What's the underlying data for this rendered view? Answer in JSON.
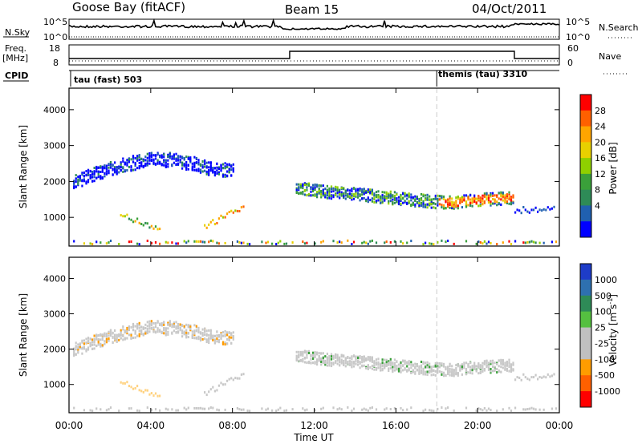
{
  "header": {
    "station": "Goose Bay (fitACF)",
    "beam": "Beam 15",
    "date": "04/Oct/2011"
  },
  "noise_panel": {
    "left_label": "N.Sky",
    "right_label": "N.Search",
    "left_ticks": [
      "10^5",
      "10^0"
    ],
    "right_ticks": [
      "10^5",
      "10^0"
    ]
  },
  "freq_panel": {
    "left_label_1": "Freq.",
    "left_label_2": "[MHz]",
    "right_label": "Nave",
    "left_ticks": [
      "18",
      "8"
    ],
    "right_ticks": [
      "60",
      "0"
    ]
  },
  "cpid": {
    "label": "CPID",
    "modes": [
      {
        "name": "tau (fast) 503",
        "start_hour": 0
      },
      {
        "name": "themis (tau) 3310",
        "start_hour": 18.0
      }
    ]
  },
  "axes": {
    "range_label": "Slant Range [km]",
    "range_ticks": [
      "1000",
      "2000",
      "3000",
      "4000"
    ],
    "time_label": "Time UT",
    "time_ticks": [
      "00:00",
      "04:00",
      "08:00",
      "12:00",
      "16:00",
      "20:00",
      "00:00"
    ]
  },
  "power_colorbar": {
    "label": "Power [dB]",
    "ticks": [
      "28",
      "24",
      "20",
      "16",
      "12",
      "8",
      "4"
    ],
    "colors": [
      "#ff0000",
      "#ff6000",
      "#ffa500",
      "#e8d000",
      "#8fd000",
      "#3aa03a",
      "#2e8b57",
      "#2060b0",
      "#0000ff"
    ]
  },
  "velocity_colorbar": {
    "label_prefix": "Velocity",
    "label_units": "[m s",
    "label_exp": "-1",
    "ticks": [
      "1000",
      "500",
      "100",
      "25",
      "-25",
      "-100",
      "-500",
      "-1000"
    ],
    "colors": [
      "#1e3cc8",
      "#2e70b0",
      "#2e8b57",
      "#55c040",
      "#c0c0c0",
      "#c0c0c0",
      "#ff9c00",
      "#ff6000",
      "#ff0000"
    ]
  },
  "chart_data": {
    "type": "heatmap",
    "x_unit": "hours UT",
    "xlim": [
      0,
      24
    ],
    "ylim": [
      200,
      4600
    ],
    "power_band_center_km": [
      [
        0,
        1950
      ],
      [
        1,
        2150
      ],
      [
        2,
        2350
      ],
      [
        3,
        2500
      ],
      [
        4,
        2600
      ],
      [
        5,
        2600
      ],
      [
        6,
        2500
      ],
      [
        7,
        2350
      ],
      [
        8,
        2300
      ]
    ],
    "power_band_center_km_late": [
      [
        11,
        1850
      ],
      [
        12.5,
        1700
      ],
      [
        14,
        1650
      ],
      [
        15.5,
        1550
      ],
      [
        16.5,
        1500
      ],
      [
        17.5,
        1450
      ],
      [
        18.5,
        1400
      ],
      [
        19.5,
        1450
      ],
      [
        20.5,
        1500
      ],
      [
        21.8,
        1550
      ]
    ],
    "hot_spot_power_dB": 28,
    "velocity_typical_m_s": [
      -25,
      25
    ]
  }
}
